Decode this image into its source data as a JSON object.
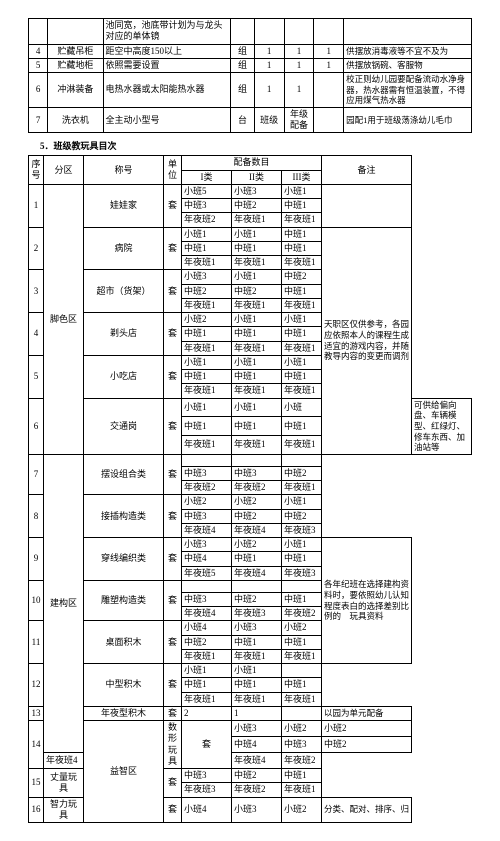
{
  "table1": {
    "rows": [
      {
        "no": "",
        "name": "",
        "spec": "池同宽，池底带计划为与龙头对应的单体镜",
        "unit": "",
        "c1": "",
        "c2": "",
        "c3": "",
        "note": ""
      },
      {
        "no": "4",
        "name": "贮藏吊柜",
        "spec": "距空中高度150以上",
        "unit": "组",
        "c1": "1",
        "c2": "1",
        "c3": "1",
        "note": "供摆放消毒液等不宜不及为"
      },
      {
        "no": "5",
        "name": "贮藏地柜",
        "spec": "依照需要设置",
        "unit": "组",
        "c1": "1",
        "c2": "1",
        "c3": "1",
        "note": "供摆放锅碗、客服物"
      },
      {
        "no": "6",
        "name": "冲淋装备",
        "spec": "电热水器或太阳能热水器",
        "unit": "组",
        "c1": "1",
        "c2": "1",
        "c3": "",
        "note": "校正则幼儿园要配备流动水净身器，热水器需有恒温装置，不得应用煤气热水器"
      },
      {
        "no": "7",
        "name": "洗衣机",
        "spec": "全主动小型号",
        "unit": "台",
        "c1": "班级",
        "c2": "年级配备",
        "c3": "",
        "note": "园配1用于班级荡涤幼儿毛巾"
      }
    ]
  },
  "section5": "5．班级教玩具目次",
  "table2": {
    "headers": {
      "seq": "序号",
      "area": "分区",
      "name": "称号",
      "unit": "单位",
      "spec": "配备数目",
      "c1": "I类",
      "c2": "II类",
      "c3": "III类",
      "note": "备注"
    },
    "groups": [
      {
        "zone": "脚色区",
        "zone_rows": 18,
        "items": [
          {
            "no": "1",
            "name": "娃娃家",
            "unit": "套",
            "c": [
              [
                "小班5",
                "小班3",
                "",
                "小班1"
              ],
              [
                "中班3",
                "中班2",
                "",
                "中班1"
              ],
              [
                "年夜班2",
                "年夜班1",
                "",
                "年夜班1"
              ]
            ],
            "note": ""
          },
          {
            "no": "2",
            "name": "病院",
            "unit": "套",
            "c": [
              [
                "小班1",
                "小班1",
                "",
                "中班1"
              ],
              [
                "中班1",
                "中班1",
                "",
                "中班1"
              ],
              [
                "年夜班1",
                "年夜班1",
                "",
                "年夜班1"
              ]
            ],
            "note_rowspan": 15,
            "note": "天职区仅供参考，各园应依照本人的课程生成适宜的游戏内容，并随教导内容的变更而调剂"
          },
          {
            "no": "3",
            "name": "超市（货架）",
            "unit": "套",
            "c": [
              [
                "小班3",
                "小班1",
                "",
                "中班2"
              ],
              [
                "中班2",
                "中班2",
                "",
                "中班1"
              ],
              [
                "年夜班1",
                "年夜班1",
                "",
                "年夜班1"
              ]
            ]
          },
          {
            "no": "4",
            "name": "剃头店",
            "unit": "套",
            "c": [
              [
                "小班2",
                "小班1",
                "",
                "小班1"
              ],
              [
                "中班1",
                "中班1",
                "",
                "中班1"
              ],
              [
                "年夜班1",
                "年夜班1",
                "",
                "年夜班1"
              ]
            ]
          },
          {
            "no": "5",
            "name": "小吃店",
            "unit": "套",
            "c": [
              [
                "小班1",
                "小班1",
                "",
                "小班1"
              ],
              [
                "中班1",
                "中班1",
                "",
                "中班1"
              ],
              [
                "年夜班1",
                "年夜班1",
                "",
                "年夜班1"
              ]
            ]
          },
          {
            "no": "6",
            "name": "交通岗",
            "unit": "套",
            "c": [
              [
                "小班1",
                "小班1",
                "",
                "小班"
              ],
              [
                "中班1",
                "中班1",
                "",
                "中班1"
              ],
              [
                "年夜班1",
                "年夜班1",
                "",
                "年夜班1"
              ]
            ],
            "sep_note": "可供给偏向盘、车辆模型、红绿灯、修车东西、加油站等"
          }
        ]
      },
      {
        "zone": "建构区",
        "zone_rows": 21,
        "items": [
          {
            "no": "7",
            "name": "摆设组合类",
            "unit": "套",
            "c": [
              [
                "",
                "",
                "",
                ""
              ],
              [
                "中班3",
                "中班3",
                "",
                "中班2"
              ],
              [
                "年夜班2",
                "年夜班2",
                "",
                "年夜班1"
              ]
            ]
          },
          {
            "no": "8",
            "name": "接插构造类",
            "unit": "套",
            "c": [
              [
                "小班2",
                "小班2",
                "",
                "小班1"
              ],
              [
                "中班3",
                "中班2",
                "",
                "中班2"
              ],
              [
                "年夜班4",
                "年夜班4",
                "",
                "年夜班3"
              ]
            ]
          },
          {
            "no": "9",
            "name": "穿线编织类",
            "unit": "套",
            "c": [
              [
                "小班3",
                "小班2",
                "",
                "小班1"
              ],
              [
                "中班4",
                "中班1",
                "",
                "中班1"
              ],
              [
                "年夜班5",
                "年夜班4",
                "",
                "年夜班3"
              ]
            ],
            "sep_note": "各年纪班在选择建构资料时，要依照幼儿认知程度表白的选择差别比例的　玩具资料",
            "note_rowspan": 9
          },
          {
            "no": "10",
            "name": "雕塑构造类",
            "unit": "套",
            "c": [
              [
                "",
                "",
                "",
                ""
              ],
              [
                "中班3",
                "中班2",
                "",
                "中班1"
              ],
              [
                "年夜班4",
                "年夜班3",
                "",
                "年夜班2"
              ]
            ]
          },
          {
            "no": "11",
            "name": "桌面积木",
            "unit": "套",
            "c": [
              [
                "小班4",
                "小班3",
                "",
                "小班2"
              ],
              [
                "中班2",
                "中班1",
                "",
                "中班1"
              ],
              [
                "年夜班1",
                "年夜班1",
                "",
                "年夜班1"
              ]
            ]
          },
          {
            "no": "12",
            "name": "中型积木",
            "unit": "套",
            "c": [
              [
                "小班1",
                "小班1",
                "",
                ""
              ],
              [
                "中班1",
                "中班1",
                "",
                "中班1"
              ],
              [
                "年夜班1",
                "年夜班1",
                "",
                "年夜班1"
              ]
            ]
          },
          {
            "no": "13",
            "name": "年夜型积木",
            "unit": "套",
            "c": [
              [
                "2",
                "1",
                "",
                ""
              ]
            ],
            "sep_note": "以园为单元配备"
          }
        ]
      },
      {
        "zone": "益智区",
        "zone_rows": 7,
        "items": [
          {
            "no": "14",
            "name": "数形玩具",
            "unit": "套",
            "c": [
              [
                "小班3",
                "小班2",
                "小班2",
                ""
              ],
              [
                "中班4",
                "中班3",
                "中班2",
                ""
              ],
              [
                "年夜班4",
                "年夜班4",
                "年夜班2",
                ""
              ]
            ]
          },
          {
            "no": "15",
            "name": "丈量玩具",
            "unit": "套",
            "c": [
              [
                "中班3",
                "中班2",
                "",
                "中班1"
              ],
              [
                "年夜班3",
                "年夜班2",
                "年夜班1",
                ""
              ]
            ]
          },
          {
            "no": "16",
            "name": "智力玩具",
            "unit": "套",
            "c": [
              [
                "小班4",
                "小班3",
                "小班2",
                ""
              ]
            ],
            "sep_note": "分类、配对、排序、归"
          }
        ]
      }
    ]
  }
}
